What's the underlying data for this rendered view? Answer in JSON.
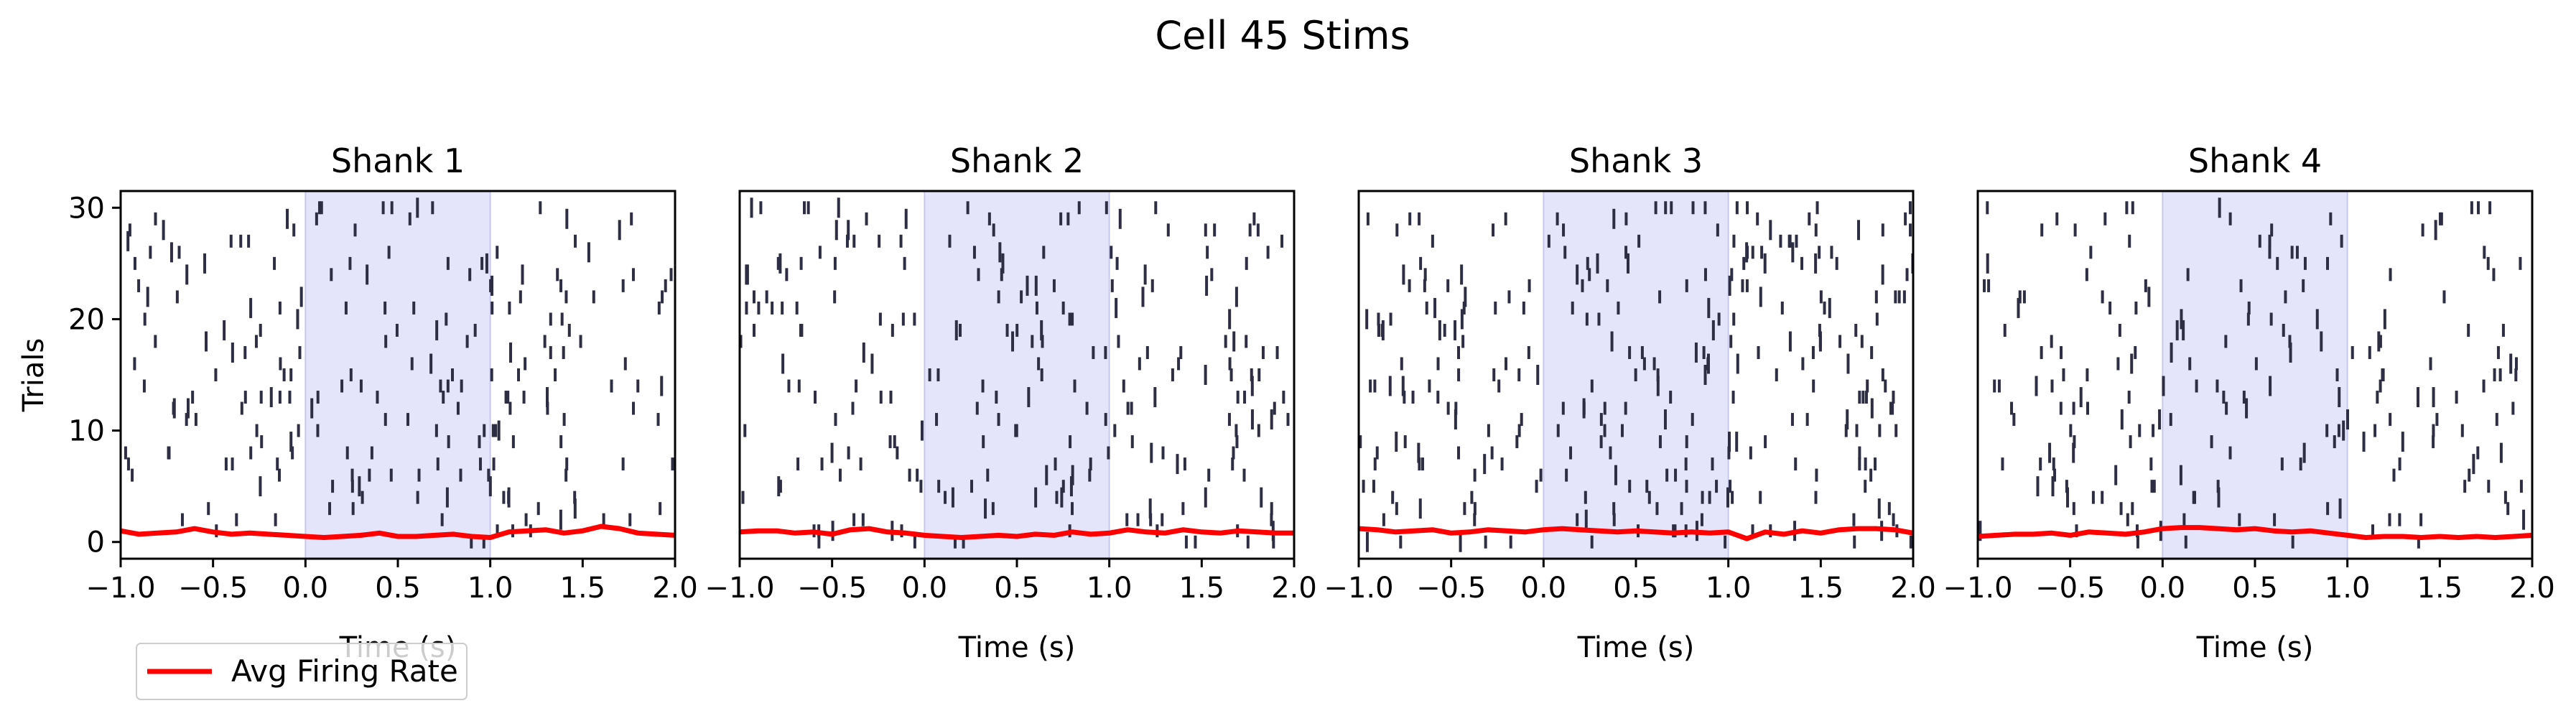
{
  "figure": {
    "title": "Cell 45 Stims"
  },
  "legend": {
    "label": "Avg Firing Rate",
    "color": "#ff0000",
    "placement": "lower-left"
  },
  "chart_data": [
    {
      "type": "raster",
      "title": "Shank 1",
      "xlabel": "Time (s)",
      "ylabel": "Trials",
      "xlim": [
        -1.0,
        2.0
      ],
      "ylim": [
        -1.5,
        31.5
      ],
      "xticks": [
        "−1.0",
        "−0.5",
        "0.0",
        "0.5",
        "1.0",
        "1.5",
        "2.0"
      ],
      "yticks": [
        "0",
        "10",
        "20",
        "30"
      ],
      "stim_window": [
        0.0,
        1.0
      ],
      "spikes_per_trial": [
        2,
        4,
        8,
        6,
        7,
        5,
        9,
        10,
        7,
        6,
        8,
        6,
        9,
        13,
        9,
        8,
        6,
        6,
        7,
        6,
        5,
        8,
        7,
        6,
        8,
        7,
        6,
        5,
        5,
        6,
        7
      ],
      "series": [
        {
          "name": "Avg Firing Rate",
          "x": [
            -1.0,
            -0.9,
            -0.8,
            -0.7,
            -0.6,
            -0.5,
            -0.4,
            -0.3,
            -0.2,
            -0.1,
            0.0,
            0.1,
            0.2,
            0.3,
            0.4,
            0.5,
            0.6,
            0.7,
            0.8,
            0.9,
            1.0,
            1.1,
            1.2,
            1.3,
            1.4,
            1.5,
            1.6,
            1.7,
            1.8,
            1.9,
            2.0
          ],
          "y": [
            1.0,
            0.7,
            0.8,
            0.9,
            1.2,
            0.9,
            0.7,
            0.8,
            0.7,
            0.6,
            0.5,
            0.4,
            0.5,
            0.6,
            0.8,
            0.5,
            0.5,
            0.6,
            0.7,
            0.5,
            0.4,
            0.9,
            1.0,
            1.1,
            0.8,
            1.0,
            1.4,
            1.2,
            0.8,
            0.7,
            0.6
          ]
        }
      ]
    },
    {
      "type": "raster",
      "title": "Shank 2",
      "xlabel": "Time (s)",
      "xlim": [
        -1.0,
        2.0
      ],
      "ylim": [
        -1.5,
        31.5
      ],
      "xticks": [
        "−1.0",
        "−0.5",
        "0.0",
        "0.5",
        "1.0",
        "1.5",
        "2.0"
      ],
      "stim_window": [
        0.0,
        1.0
      ],
      "spikes_per_trial": [
        8,
        9,
        7,
        6,
        8,
        7,
        9,
        8,
        7,
        6,
        7,
        8,
        6,
        9,
        7,
        8,
        6,
        7,
        8,
        9,
        6,
        8,
        7,
        6,
        7,
        8,
        7,
        6,
        8,
        7,
        9
      ],
      "series": [
        {
          "name": "Avg Firing Rate",
          "x": [
            -1.0,
            -0.9,
            -0.8,
            -0.7,
            -0.6,
            -0.5,
            -0.4,
            -0.3,
            -0.2,
            -0.1,
            0.0,
            0.1,
            0.2,
            0.3,
            0.4,
            0.5,
            0.6,
            0.7,
            0.8,
            0.9,
            1.0,
            1.1,
            1.2,
            1.3,
            1.4,
            1.5,
            1.6,
            1.7,
            1.8,
            1.9,
            2.0
          ],
          "y": [
            0.9,
            1.0,
            1.0,
            0.8,
            0.9,
            0.7,
            1.1,
            1.2,
            0.9,
            0.8,
            0.6,
            0.5,
            0.4,
            0.5,
            0.6,
            0.5,
            0.7,
            0.6,
            0.9,
            0.7,
            0.8,
            1.1,
            0.9,
            0.8,
            1.1,
            0.9,
            0.8,
            1.0,
            0.9,
            0.8,
            0.8
          ]
        }
      ]
    },
    {
      "type": "raster",
      "title": "Shank 3",
      "xlabel": "Time (s)",
      "xlim": [
        -1.0,
        2.0
      ],
      "ylim": [
        -1.5,
        31.5
      ],
      "xticks": [
        "−1.0",
        "−0.5",
        "0.0",
        "0.5",
        "1.0",
        "1.5",
        "2.0"
      ],
      "stim_window": [
        0.0,
        1.0
      ],
      "spikes_per_trial": [
        9,
        10,
        8,
        9,
        10,
        9,
        8,
        11,
        9,
        10,
        9,
        8,
        10,
        9,
        11,
        9,
        10,
        9,
        8,
        10,
        9,
        11,
        9,
        10,
        9,
        10,
        9,
        8,
        9,
        10,
        9
      ],
      "series": [
        {
          "name": "Avg Firing Rate",
          "x": [
            -1.0,
            -0.9,
            -0.8,
            -0.7,
            -0.6,
            -0.5,
            -0.4,
            -0.3,
            -0.2,
            -0.1,
            0.0,
            0.1,
            0.2,
            0.3,
            0.4,
            0.5,
            0.6,
            0.7,
            0.8,
            0.9,
            1.0,
            1.1,
            1.2,
            1.3,
            1.4,
            1.5,
            1.6,
            1.7,
            1.8,
            1.9,
            2.0
          ],
          "y": [
            1.2,
            1.1,
            0.9,
            1.0,
            1.1,
            0.8,
            0.9,
            1.1,
            1.0,
            0.9,
            1.1,
            1.2,
            1.1,
            1.0,
            0.9,
            1.0,
            0.9,
            0.8,
            0.9,
            0.8,
            0.9,
            0.3,
            0.9,
            0.7,
            1.0,
            0.8,
            1.1,
            1.2,
            1.2,
            1.1,
            0.8
          ]
        }
      ]
    },
    {
      "type": "raster",
      "title": "Shank 4",
      "xlabel": "Time (s)",
      "xlim": [
        -1.0,
        2.0
      ],
      "ylim": [
        -1.5,
        31.5
      ],
      "xticks": [
        "−1.0",
        "−0.5",
        "0.0",
        "0.5",
        "1.0",
        "1.5",
        "2.0"
      ],
      "stim_window": [
        0.0,
        1.0
      ],
      "spikes_per_trial": [
        4,
        5,
        8,
        6,
        7,
        9,
        5,
        8,
        6,
        7,
        9,
        8,
        7,
        9,
        10,
        8,
        7,
        8,
        6,
        7,
        5,
        4,
        6,
        5,
        4,
        6,
        5,
        4,
        5,
        6,
        7
      ],
      "series": [
        {
          "name": "Avg Firing Rate",
          "x": [
            -1.0,
            -0.9,
            -0.8,
            -0.7,
            -0.6,
            -0.5,
            -0.4,
            -0.3,
            -0.2,
            -0.1,
            0.0,
            0.1,
            0.2,
            0.3,
            0.4,
            0.5,
            0.6,
            0.7,
            0.8,
            0.9,
            1.0,
            1.1,
            1.2,
            1.3,
            1.4,
            1.5,
            1.6,
            1.7,
            1.8,
            1.9,
            2.0
          ],
          "y": [
            0.5,
            0.6,
            0.7,
            0.7,
            0.8,
            0.6,
            0.9,
            0.8,
            0.7,
            0.9,
            1.2,
            1.3,
            1.3,
            1.2,
            1.1,
            1.2,
            1.0,
            0.9,
            1.0,
            0.8,
            0.6,
            0.4,
            0.5,
            0.5,
            0.4,
            0.5,
            0.4,
            0.5,
            0.4,
            0.5,
            0.6
          ]
        }
      ]
    }
  ]
}
